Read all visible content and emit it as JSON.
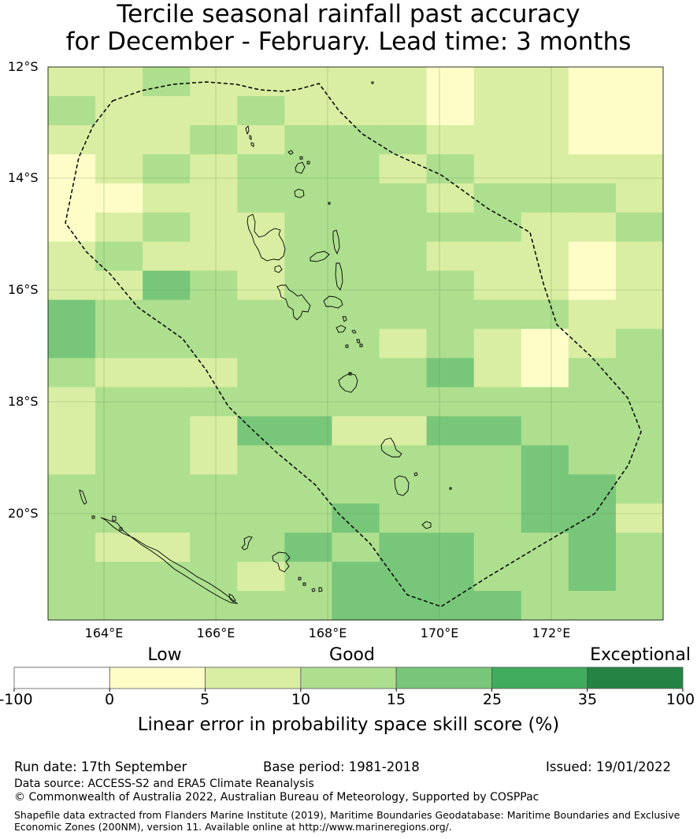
{
  "title": {
    "line1": "Tercile seasonal rainfall past accuracy",
    "line2": "for December - February. Lead time: 3 months"
  },
  "map": {
    "lat_labels": [
      "12°S",
      "14°S",
      "16°S",
      "18°S",
      "20°S"
    ],
    "lon_labels": [
      "164°E",
      "166°E",
      "168°E",
      "170°E",
      "172°E"
    ],
    "skill_grid_colors": [
      [
        "#d9eea2",
        "#d9eea2",
        "#addf8e",
        "#d9eea2",
        "#d9eea2",
        "#d9eea2",
        "#d9eea2",
        "#d9eea2",
        "#fefdc8",
        "#d9eea2",
        "#d9eea2",
        "#fefdc8",
        "#fefdc8"
      ],
      [
        "#addf8e",
        "#d9eea2",
        "#d9eea2",
        "#d9eea2",
        "#addf8e",
        "#d9eea2",
        "#d9eea2",
        "#d9eea2",
        "#fefdc8",
        "#d9eea2",
        "#d9eea2",
        "#fefdc8",
        "#fefdc8"
      ],
      [
        "#d9eea2",
        "#d9eea2",
        "#d9eea2",
        "#addf8e",
        "#d9eea2",
        "#addf8e",
        "#addf8e",
        "#addf8e",
        "#d9eea2",
        "#d9eea2",
        "#d9eea2",
        "#fefdc8",
        "#fefdc8"
      ],
      [
        "#fefdc8",
        "#d9eea2",
        "#addf8e",
        "#d9eea2",
        "#addf8e",
        "#addf8e",
        "#addf8e",
        "#d9eea2",
        "#addf8e",
        "#d9eea2",
        "#d9eea2",
        "#d9eea2",
        "#d9eea2"
      ],
      [
        "#fefdc8",
        "#fefdc8",
        "#d9eea2",
        "#d9eea2",
        "#addf8e",
        "#addf8e",
        "#addf8e",
        "#addf8e",
        "#d9eea2",
        "#addf8e",
        "#addf8e",
        "#addf8e",
        "#d9eea2"
      ],
      [
        "#fefdc8",
        "#d9eea2",
        "#addf8e",
        "#d9eea2",
        "#d9eea2",
        "#addf8e",
        "#addf8e",
        "#addf8e",
        "#addf8e",
        "#addf8e",
        "#d9eea2",
        "#d9eea2",
        "#addf8e"
      ],
      [
        "#d9eea2",
        "#addf8e",
        "#d9eea2",
        "#d9eea2",
        "#d9eea2",
        "#addf8e",
        "#addf8e",
        "#addf8e",
        "#d9eea2",
        "#d9eea2",
        "#d9eea2",
        "#fefdc8",
        "#d9eea2"
      ],
      [
        "#d9eea2",
        "#d9eea2",
        "#78c679",
        "#addf8e",
        "#d9eea2",
        "#addf8e",
        "#addf8e",
        "#addf8e",
        "#addf8e",
        "#d9eea2",
        "#d9eea2",
        "#fefdc8",
        "#d9eea2"
      ],
      [
        "#78c679",
        "#addf8e",
        "#addf8e",
        "#addf8e",
        "#addf8e",
        "#addf8e",
        "#addf8e",
        "#addf8e",
        "#addf8e",
        "#addf8e",
        "#addf8e",
        "#d9eea2",
        "#d9eea2"
      ],
      [
        "#78c679",
        "#addf8e",
        "#addf8e",
        "#addf8e",
        "#addf8e",
        "#addf8e",
        "#addf8e",
        "#d9eea2",
        "#addf8e",
        "#d9eea2",
        "#fefdc8",
        "#d9eea2",
        "#addf8e"
      ],
      [
        "#addf8e",
        "#d9eea2",
        "#d9eea2",
        "#d9eea2",
        "#addf8e",
        "#addf8e",
        "#addf8e",
        "#addf8e",
        "#78c679",
        "#d9eea2",
        "#fefdc8",
        "#addf8e",
        "#addf8e"
      ],
      [
        "#d9eea2",
        "#addf8e",
        "#addf8e",
        "#addf8e",
        "#addf8e",
        "#addf8e",
        "#addf8e",
        "#addf8e",
        "#addf8e",
        "#addf8e",
        "#addf8e",
        "#addf8e",
        "#addf8e"
      ],
      [
        "#d9eea2",
        "#addf8e",
        "#addf8e",
        "#d9eea2",
        "#78c679",
        "#78c679",
        "#d9eea2",
        "#d9eea2",
        "#78c679",
        "#78c679",
        "#addf8e",
        "#addf8e",
        "#addf8e"
      ],
      [
        "#d9eea2",
        "#addf8e",
        "#addf8e",
        "#d9eea2",
        "#addf8e",
        "#addf8e",
        "#addf8e",
        "#addf8e",
        "#addf8e",
        "#addf8e",
        "#78c679",
        "#addf8e",
        "#addf8e"
      ],
      [
        "#addf8e",
        "#addf8e",
        "#addf8e",
        "#addf8e",
        "#addf8e",
        "#addf8e",
        "#addf8e",
        "#addf8e",
        "#addf8e",
        "#addf8e",
        "#78c679",
        "#78c679",
        "#addf8e"
      ],
      [
        "#addf8e",
        "#addf8e",
        "#addf8e",
        "#addf8e",
        "#addf8e",
        "#addf8e",
        "#78c679",
        "#addf8e",
        "#addf8e",
        "#addf8e",
        "#78c679",
        "#78c679",
        "#d9eea2"
      ],
      [
        "#addf8e",
        "#d9eea2",
        "#d9eea2",
        "#addf8e",
        "#addf8e",
        "#78c679",
        "#addf8e",
        "#78c679",
        "#78c679",
        "#addf8e",
        "#addf8e",
        "#78c679",
        "#addf8e"
      ],
      [
        "#addf8e",
        "#addf8e",
        "#addf8e",
        "#addf8e",
        "#d9eea2",
        "#addf8e",
        "#78c679",
        "#78c679",
        "#78c679",
        "#addf8e",
        "#addf8e",
        "#78c679",
        "#addf8e"
      ],
      [
        "#addf8e",
        "#addf8e",
        "#addf8e",
        "#addf8e",
        "#addf8e",
        "#addf8e",
        "#78c679",
        "#78c679",
        "#78c679",
        "#78c679",
        "#addf8e",
        "#addf8e",
        "#addf8e"
      ]
    ]
  },
  "colorbar": {
    "category_labels": [
      "Low",
      "Good",
      "Exceptional"
    ],
    "colors": [
      "#ffffff",
      "#fefdc8",
      "#d9eea2",
      "#addf8e",
      "#78c679",
      "#41ab5d",
      "#238443"
    ],
    "tick_labels": [
      "-100",
      "0",
      "5",
      "10",
      "15",
      "25",
      "35",
      "100"
    ],
    "title": "Linear error in probability space skill score (%)"
  },
  "footer": {
    "run_date": "Run date: 17th September",
    "base_period": "Base period: 1981-2018",
    "issued": "Issued: 19/01/2022",
    "data_source": "Data source: ACCESS-S2 and ERA5 Climate Reanalysis",
    "copyright": "© Commonwealth of Australia 2022, Australian Bureau of Meteorology, Supported by COSPPac",
    "shapefile_line1": "Shapefile data extracted from Flanders Marine Institute (2019), Maritime Boundaries Geodatabase: Maritime Boundaries and Exclusive",
    "shapefile_line2": "Economic Zones (200NM), version 11. Available online at http://www.marineregions.org/."
  }
}
